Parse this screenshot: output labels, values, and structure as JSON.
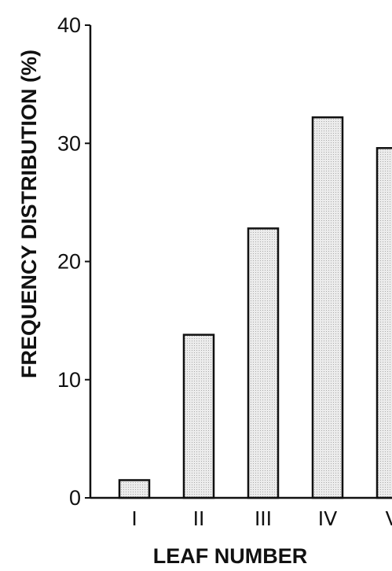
{
  "chart_data": {
    "type": "bar",
    "title": "",
    "xlabel": "LEAF NUMBER",
    "ylabel": "FREQUENCY DISTRIBUTION (%)",
    "categories": [
      "I",
      "II",
      "III",
      "IV",
      "V"
    ],
    "values": [
      1.5,
      13.8,
      22.8,
      32.2,
      29.6
    ],
    "ylim": [
      0,
      40
    ],
    "yticks": [
      0,
      10,
      20,
      30,
      40
    ],
    "grid": false,
    "bar_color": "#e6e6e6",
    "axis_color": "#111111"
  }
}
